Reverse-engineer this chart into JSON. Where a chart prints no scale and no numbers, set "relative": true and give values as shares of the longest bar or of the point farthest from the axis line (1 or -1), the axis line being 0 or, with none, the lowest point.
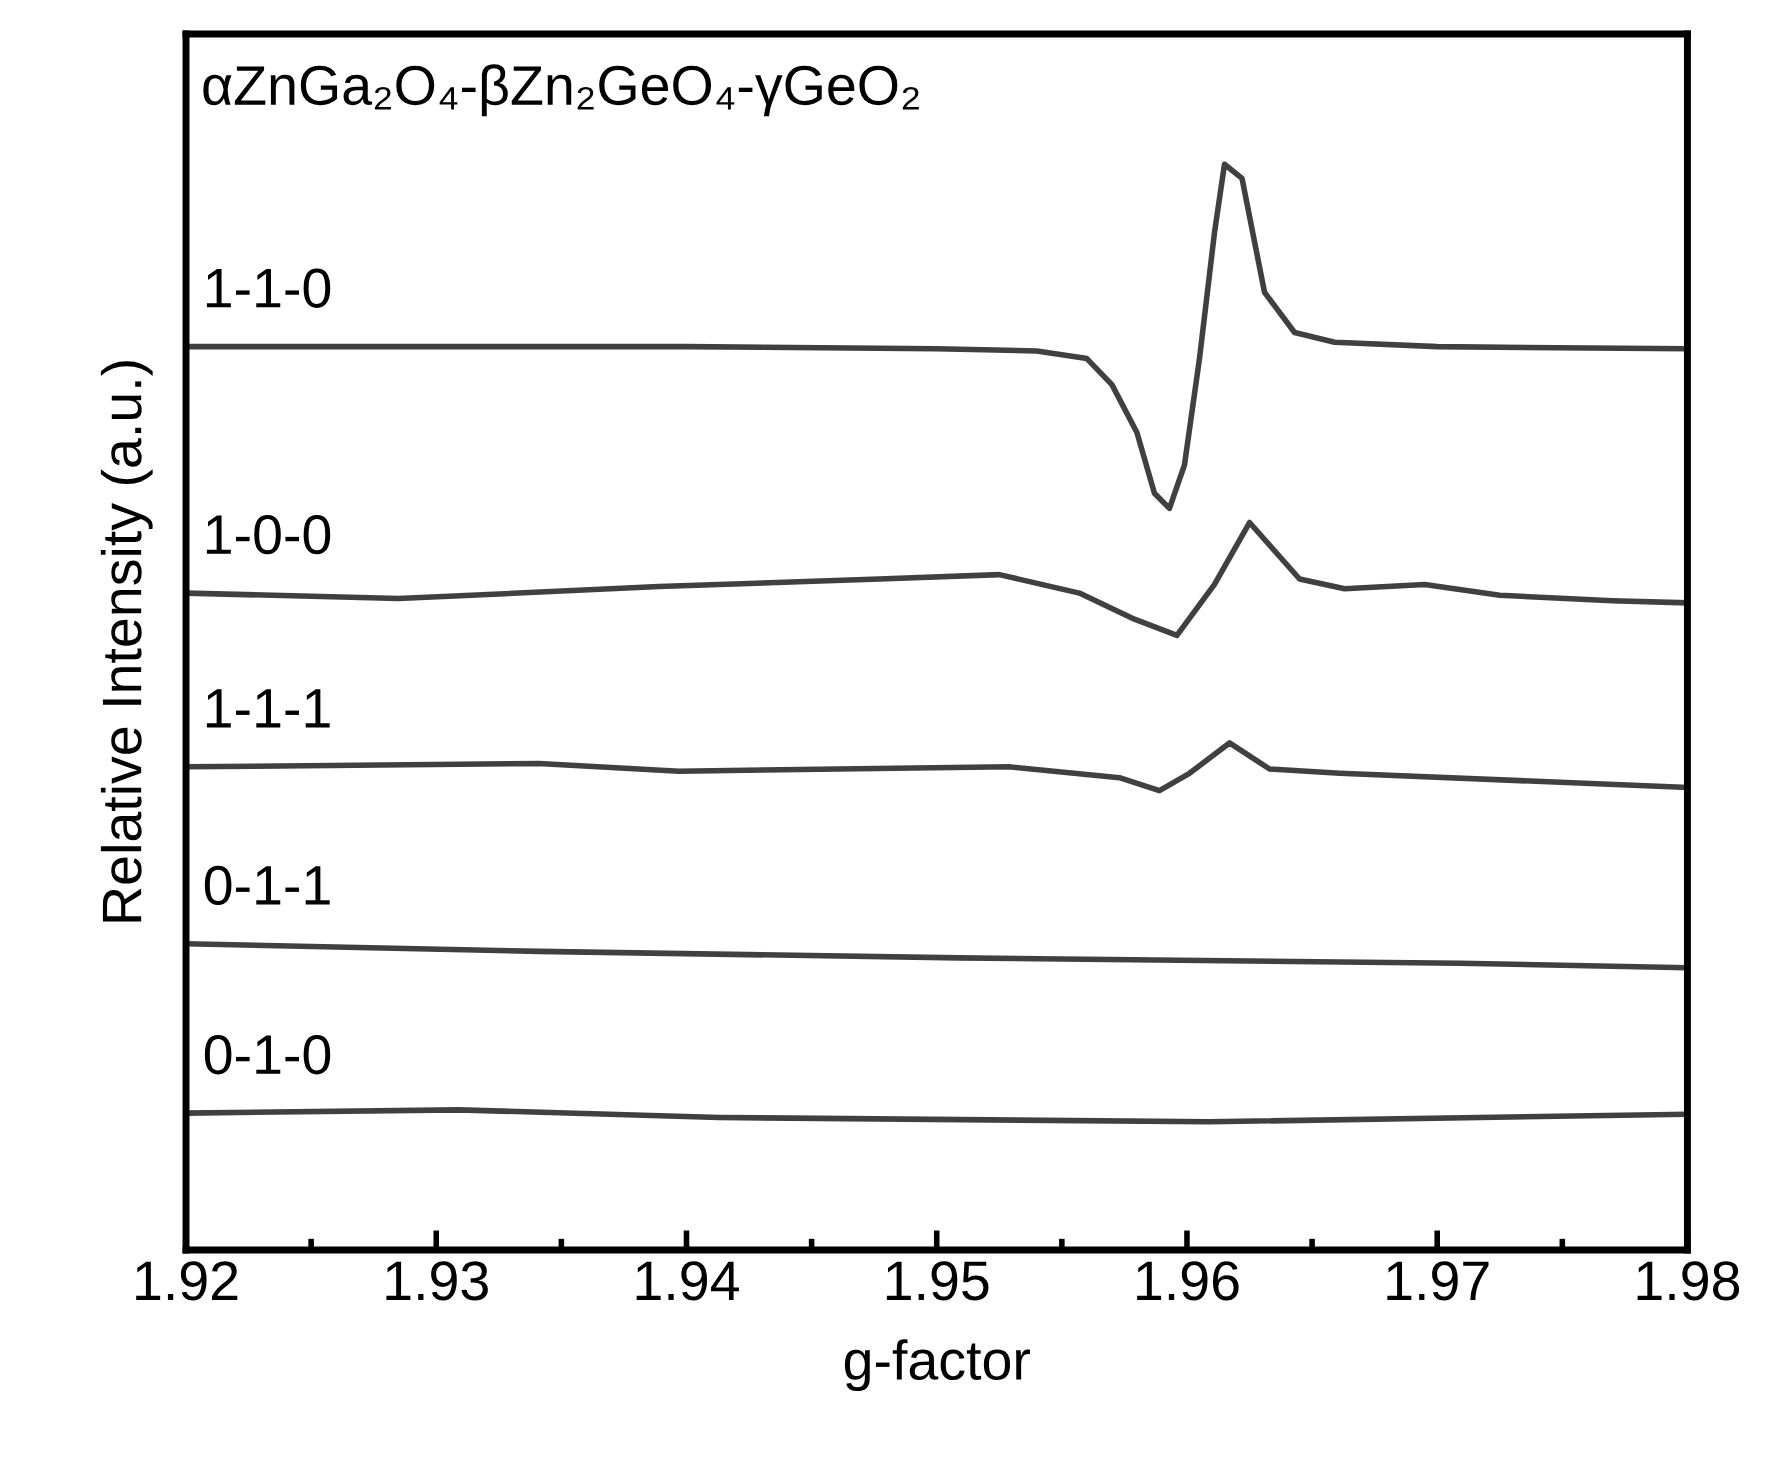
{
  "chart_data": {
    "type": "line",
    "relative": true,
    "title": "αZnGa₂O₄-βZn₂GeO₄-γGeO₂",
    "xlabel": "g-factor",
    "ylabel": "Relative Intensity (a.u.)",
    "xlim": [
      1.92,
      1.98
    ],
    "xticks": [
      1.92,
      1.93,
      1.94,
      1.95,
      1.96,
      1.97,
      1.98
    ],
    "legend": false,
    "grid": false,
    "marker": "none",
    "line_style": "solid",
    "series": [
      {
        "name": "1-1-0",
        "color": "#404040",
        "x": [
          1.92,
          1.94,
          1.95,
          1.954,
          1.956,
          1.957,
          1.958,
          1.9587,
          1.9593,
          1.9599,
          1.9605,
          1.9611,
          1.9615,
          1.9622,
          1.9631,
          1.9643,
          1.9659,
          1.97,
          1.98
        ],
        "values": [
          0.832,
          0.832,
          0.83,
          0.828,
          0.821,
          0.797,
          0.753,
          0.697,
          0.683,
          0.723,
          0.821,
          0.937,
          1.0,
          0.987,
          0.882,
          0.845,
          0.836,
          0.832,
          0.83
        ]
      },
      {
        "name": "1-0-0",
        "color": "#404040",
        "x": [
          1.92,
          1.9285,
          1.9389,
          1.9477,
          1.9525,
          1.9557,
          1.9579,
          1.9596,
          1.9611,
          1.9625,
          1.9645,
          1.9663,
          1.9695,
          1.9725,
          1.977,
          1.98
        ],
        "values": [
          0.605,
          0.6,
          0.611,
          0.618,
          0.622,
          0.605,
          0.581,
          0.566,
          0.613,
          0.67,
          0.618,
          0.609,
          0.613,
          0.603,
          0.598,
          0.596
        ]
      },
      {
        "name": "1-1-1",
        "color": "#404040",
        "x": [
          1.92,
          1.9341,
          1.9397,
          1.9529,
          1.9573,
          1.9589,
          1.9601,
          1.9617,
          1.9633,
          1.9661,
          1.98
        ],
        "values": [
          0.445,
          0.448,
          0.441,
          0.445,
          0.435,
          0.423,
          0.439,
          0.467,
          0.443,
          0.439,
          0.426
        ]
      },
      {
        "name": "0-1-1",
        "color": "#404040",
        "x": [
          1.92,
          1.9341,
          1.9509,
          1.9709,
          1.98
        ],
        "values": [
          0.282,
          0.275,
          0.269,
          0.264,
          0.26
        ]
      },
      {
        "name": "0-1-0",
        "color": "#404040",
        "x": [
          1.92,
          1.9309,
          1.9413,
          1.9609,
          1.98
        ],
        "values": [
          0.126,
          0.129,
          0.122,
          0.118,
          0.125
        ]
      }
    ]
  }
}
